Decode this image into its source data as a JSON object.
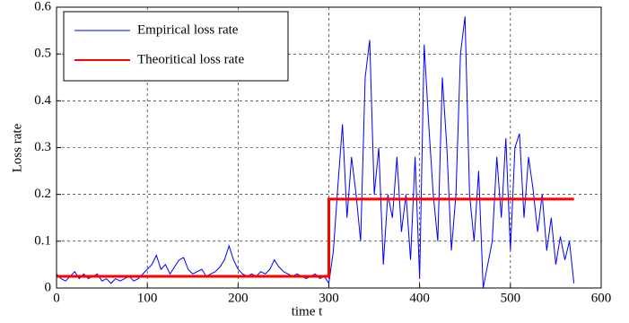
{
  "chart_data": {
    "type": "line",
    "x_label": "time t",
    "y_label": "Loss rate",
    "xlim": [
      0,
      600
    ],
    "xticks": [
      0,
      100,
      200,
      300,
      400,
      500,
      600
    ],
    "ylim": [
      0,
      0.6
    ],
    "yticks": [
      0,
      0.1,
      0.2,
      0.3,
      0.4,
      0.5,
      0.6
    ],
    "grid": true,
    "legend": "upper left",
    "series": [
      {
        "name": "Empirical loss rate",
        "color": "#0000ff",
        "width": 1,
        "x": [
          0,
          5,
          10,
          15,
          20,
          25,
          30,
          35,
          40,
          45,
          50,
          55,
          60,
          65,
          70,
          75,
          80,
          85,
          90,
          95,
          100,
          105,
          110,
          115,
          120,
          125,
          130,
          135,
          140,
          145,
          150,
          155,
          160,
          165,
          170,
          175,
          180,
          185,
          190,
          195,
          200,
          205,
          210,
          215,
          220,
          225,
          230,
          235,
          240,
          245,
          250,
          255,
          260,
          265,
          270,
          275,
          280,
          285,
          290,
          295,
          300,
          305,
          310,
          315,
          320,
          325,
          330,
          335,
          340,
          345,
          350,
          355,
          360,
          365,
          370,
          375,
          380,
          385,
          390,
          395,
          400,
          405,
          410,
          415,
          420,
          425,
          430,
          435,
          440,
          445,
          450,
          455,
          460,
          465,
          470,
          475,
          480,
          485,
          490,
          495,
          500,
          505,
          510,
          515,
          520,
          525,
          530,
          535,
          540,
          545,
          550,
          555,
          560,
          565,
          570
        ],
        "values": [
          0.03,
          0.02,
          0.015,
          0.025,
          0.035,
          0.02,
          0.03,
          0.02,
          0.025,
          0.03,
          0.015,
          0.02,
          0.01,
          0.02,
          0.015,
          0.02,
          0.025,
          0.015,
          0.02,
          0.03,
          0.04,
          0.05,
          0.07,
          0.04,
          0.05,
          0.03,
          0.045,
          0.06,
          0.065,
          0.04,
          0.03,
          0.035,
          0.04,
          0.025,
          0.03,
          0.035,
          0.045,
          0.06,
          0.09,
          0.06,
          0.04,
          0.03,
          0.025,
          0.03,
          0.025,
          0.035,
          0.03,
          0.04,
          0.06,
          0.045,
          0.035,
          0.03,
          0.025,
          0.03,
          0.025,
          0.02,
          0.025,
          0.03,
          0.02,
          0.025,
          0.01,
          0.08,
          0.22,
          0.35,
          0.15,
          0.28,
          0.2,
          0.1,
          0.45,
          0.53,
          0.2,
          0.3,
          0.05,
          0.2,
          0.15,
          0.28,
          0.12,
          0.2,
          0.06,
          0.28,
          0.02,
          0.52,
          0.35,
          0.2,
          0.1,
          0.45,
          0.3,
          0.08,
          0.2,
          0.5,
          0.58,
          0.2,
          0.1,
          0.25,
          0.0,
          0.05,
          0.1,
          0.28,
          0.15,
          0.32,
          0.08,
          0.3,
          0.33,
          0.15,
          0.28,
          0.21,
          0.12,
          0.2,
          0.08,
          0.15,
          0.05,
          0.11,
          0.06,
          0.1,
          0.01
        ]
      },
      {
        "name": "Theoritical loss rate",
        "color": "#ff0000",
        "width": 3,
        "x": [
          0,
          300,
          300,
          570
        ],
        "values": [
          0.025,
          0.025,
          0.19,
          0.19
        ]
      }
    ]
  }
}
